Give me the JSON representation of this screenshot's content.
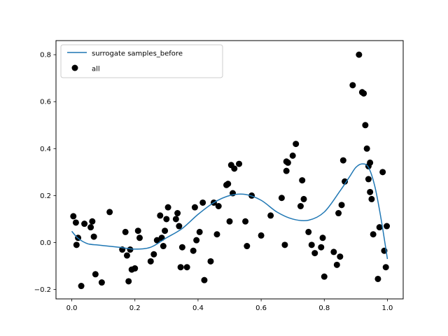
{
  "chart_data": {
    "type": "scatter",
    "title": "",
    "xlabel": "",
    "ylabel": "",
    "xlim": [
      -0.05,
      1.05
    ],
    "ylim": [
      -0.24,
      0.86
    ],
    "x_ticks": [
      0.0,
      0.2,
      0.4,
      0.6,
      0.8,
      1.0
    ],
    "x_tick_labels": [
      "0.0",
      "0.2",
      "0.4",
      "0.6",
      "0.8",
      "1.0"
    ],
    "y_ticks": [
      -0.2,
      0.0,
      0.2,
      0.4,
      0.6,
      0.8
    ],
    "y_tick_labels": [
      "−0.2",
      "0.0",
      "0.2",
      "0.4",
      "0.6",
      "0.8"
    ],
    "grid": false,
    "legend_position": "upper-left",
    "series": [
      {
        "name": "surrogate samples_before",
        "kind": "line",
        "color": "#1f77b4",
        "x": [
          0.0,
          0.02,
          0.05,
          0.08,
          0.1,
          0.15,
          0.2,
          0.25,
          0.3,
          0.35,
          0.4,
          0.45,
          0.5,
          0.55,
          0.6,
          0.65,
          0.7,
          0.75,
          0.8,
          0.85,
          0.88,
          0.9,
          0.92,
          0.94,
          0.96,
          0.98,
          1.0
        ],
        "y": [
          0.048,
          0.018,
          -0.005,
          -0.01,
          -0.013,
          -0.02,
          -0.028,
          -0.02,
          0.02,
          0.06,
          0.12,
          0.17,
          0.2,
          0.205,
          0.18,
          0.13,
          0.1,
          0.095,
          0.13,
          0.22,
          0.28,
          0.32,
          0.335,
          0.32,
          0.24,
          0.1,
          -0.07
        ]
      },
      {
        "name": "all",
        "kind": "scatter",
        "color": "#000000",
        "x": [
          0.005,
          0.013,
          0.015,
          0.02,
          0.03,
          0.04,
          0.06,
          0.065,
          0.07,
          0.075,
          0.095,
          0.12,
          0.16,
          0.17,
          0.175,
          0.18,
          0.185,
          0.19,
          0.2,
          0.21,
          0.215,
          0.25,
          0.26,
          0.27,
          0.28,
          0.285,
          0.29,
          0.295,
          0.3,
          0.305,
          0.33,
          0.335,
          0.34,
          0.345,
          0.35,
          0.365,
          0.385,
          0.39,
          0.395,
          0.405,
          0.415,
          0.42,
          0.44,
          0.45,
          0.46,
          0.465,
          0.49,
          0.495,
          0.5,
          0.505,
          0.51,
          0.515,
          0.53,
          0.55,
          0.555,
          0.57,
          0.6,
          0.63,
          0.665,
          0.675,
          0.68,
          0.685,
          0.68,
          0.7,
          0.71,
          0.725,
          0.73,
          0.735,
          0.75,
          0.76,
          0.77,
          0.79,
          0.795,
          0.8,
          0.83,
          0.84,
          0.845,
          0.85,
          0.855,
          0.86,
          0.865,
          0.89,
          0.91,
          0.92,
          0.925,
          0.93,
          0.935,
          0.94,
          0.94,
          0.945,
          0.945,
          0.95,
          0.955,
          0.97,
          0.975,
          0.985,
          0.99,
          0.995,
          0.998
        ],
        "y": [
          0.112,
          0.085,
          -0.01,
          0.02,
          -0.185,
          0.08,
          0.065,
          0.09,
          0.025,
          -0.135,
          -0.17,
          0.13,
          -0.03,
          0.045,
          -0.055,
          -0.165,
          -0.03,
          -0.115,
          -0.11,
          0.05,
          0.02,
          -0.08,
          -0.05,
          0.01,
          0.115,
          0.02,
          -0.015,
          0.05,
          0.1,
          0.15,
          0.1,
          0.125,
          0.07,
          -0.105,
          -0.02,
          -0.105,
          -0.035,
          0.15,
          0.01,
          0.045,
          0.17,
          -0.16,
          -0.08,
          0.17,
          0.035,
          0.155,
          0.245,
          0.25,
          0.09,
          0.33,
          0.21,
          0.315,
          0.335,
          0.09,
          -0.015,
          0.2,
          0.03,
          0.115,
          0.19,
          -0.01,
          0.305,
          0.34,
          0.345,
          0.37,
          0.42,
          0.155,
          0.265,
          0.185,
          0.045,
          -0.01,
          -0.045,
          -0.02,
          0.02,
          -0.145,
          -0.04,
          -0.095,
          0.125,
          -0.06,
          0.16,
          0.35,
          0.26,
          0.67,
          0.8,
          0.64,
          0.635,
          0.5,
          0.4,
          0.325,
          0.27,
          0.34,
          0.215,
          0.185,
          0.035,
          -0.155,
          0.065,
          0.3,
          -0.035,
          -0.105,
          0.07
        ]
      }
    ]
  }
}
